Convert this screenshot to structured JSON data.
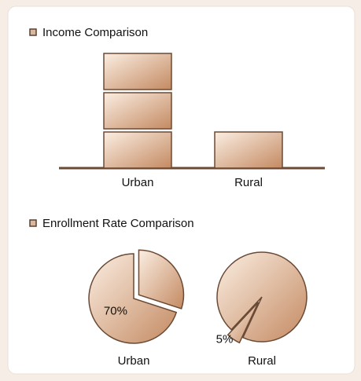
{
  "chart_data": [
    {
      "type": "pictograph",
      "title": "Income Comparison",
      "categories": [
        "Urban",
        "Rural"
      ],
      "values": [
        3,
        1
      ]
    },
    {
      "type": "pie",
      "title": "Enrollment Rate Comparison",
      "categories": [
        "Urban",
        "Rural"
      ],
      "values": [
        70,
        5
      ],
      "value_labels": [
        "70%",
        "5%"
      ]
    }
  ]
}
